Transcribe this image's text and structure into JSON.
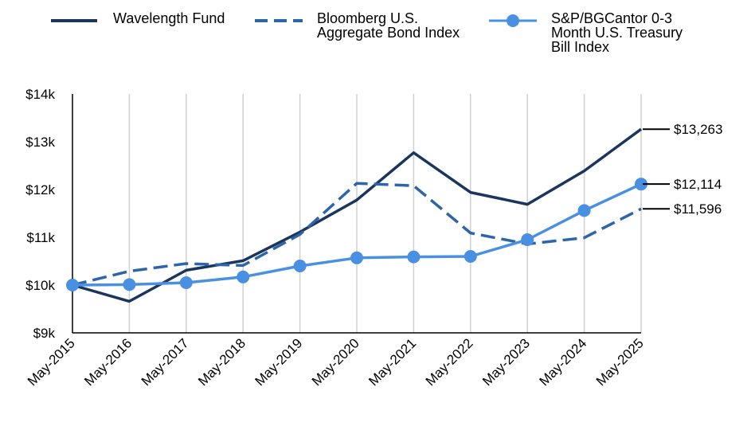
{
  "chart_data": {
    "type": "line",
    "title": "",
    "xlabel": "",
    "ylabel": "",
    "categories": [
      "May-2015",
      "May-2016",
      "May-2017",
      "May-2018",
      "May-2019",
      "May-2020",
      "May-2021",
      "May-2022",
      "May-2023",
      "May-2024",
      "May-2025"
    ],
    "ylim": [
      9000,
      14000
    ],
    "yticks": [
      9000,
      10000,
      11000,
      12000,
      13000,
      14000
    ],
    "ytick_labels": [
      "$9k",
      "$10k",
      "$11k",
      "$12k",
      "$13k",
      "$14k"
    ],
    "grid": "vertical",
    "legend_position": "top",
    "series": [
      {
        "name": "Wavelength Fund",
        "style": "solid",
        "color": "#1b365d",
        "values": [
          10000,
          9660,
          10310,
          10510,
          11110,
          11780,
          12770,
          11940,
          11690,
          12390,
          13263
        ],
        "end_label": "$13,263"
      },
      {
        "name": "Bloomberg U.S.\nAggregate Bond Index",
        "style": "dashed",
        "color": "#2e64a8",
        "values": [
          10000,
          10290,
          10450,
          10410,
          11060,
          12130,
          12080,
          11090,
          10860,
          10990,
          11596
        ],
        "end_label": "$11,596"
      },
      {
        "name": "S&P/BGCantor 0-3\nMonth U.S. Treasury\nBill Index",
        "style": "solid-markers",
        "color": "#4a90e2",
        "values": [
          10000,
          10010,
          10050,
          10170,
          10400,
          10570,
          10590,
          10600,
          10950,
          11560,
          12114
        ],
        "end_label": "$12,114"
      }
    ]
  }
}
